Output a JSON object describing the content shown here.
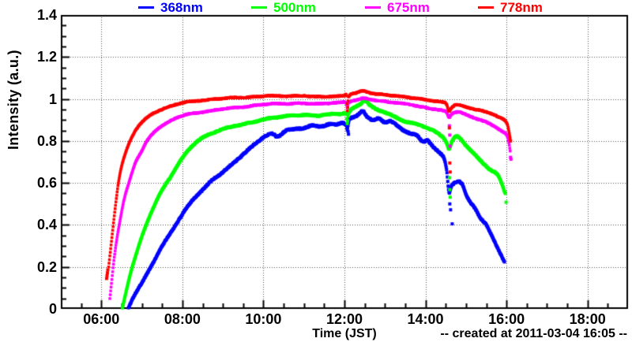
{
  "footer": {
    "text": "-- created at 2011-03-04 16:05 --"
  },
  "x_axis": {
    "title": "Time (JST)",
    "tick_labels": [
      "06:00",
      "08:00",
      "10:00",
      "12:00",
      "14:00",
      "16:00",
      "18:00"
    ],
    "tick_values": [
      6,
      8,
      10,
      12,
      14,
      16,
      18
    ]
  },
  "y_axis": {
    "title": "Intensity (a.u.)",
    "tick_labels": [
      "0",
      "0.2",
      "0.4",
      "0.6",
      "0.8",
      "1",
      "1.2",
      "1.4"
    ],
    "tick_values": [
      0,
      0.2,
      0.4,
      0.6,
      0.8,
      1.0,
      1.2,
      1.4
    ]
  },
  "chart_data": {
    "type": "scatter",
    "title": "",
    "xlabel": "Time (JST)",
    "ylabel": "Intensity (a.u.)",
    "xlim": [
      5,
      19
    ],
    "ylim": [
      0,
      1.4
    ],
    "grid": true,
    "grid_style": "dotted",
    "legend_position": "top",
    "x_unit": "decimal hours (JST)",
    "frame_color": "#000000",
    "grid_color": "#555555",
    "series": [
      {
        "name": "368nm",
        "color": "#0000ff",
        "points": [
          [
            6.67,
            0.005
          ],
          [
            6.8,
            0.06
          ],
          [
            7.0,
            0.125
          ],
          [
            7.25,
            0.21
          ],
          [
            7.5,
            0.3
          ],
          [
            7.75,
            0.375
          ],
          [
            8.0,
            0.45
          ],
          [
            8.25,
            0.515
          ],
          [
            8.5,
            0.565
          ],
          [
            8.75,
            0.615
          ],
          [
            9.0,
            0.652
          ],
          [
            9.3,
            0.7
          ],
          [
            9.6,
            0.755
          ],
          [
            9.8,
            0.79
          ],
          [
            10.0,
            0.822
          ],
          [
            10.2,
            0.836
          ],
          [
            10.35,
            0.82
          ],
          [
            10.55,
            0.848
          ],
          [
            10.8,
            0.855
          ],
          [
            11.0,
            0.862
          ],
          [
            11.2,
            0.872
          ],
          [
            11.4,
            0.864
          ],
          [
            11.6,
            0.876
          ],
          [
            11.8,
            0.876
          ],
          [
            11.95,
            0.888
          ],
          [
            12.05,
            0.878
          ],
          [
            12.07,
            0.858
          ],
          [
            12.12,
            0.905
          ],
          [
            12.25,
            0.916
          ],
          [
            12.38,
            0.932
          ],
          [
            12.45,
            0.945
          ],
          [
            12.55,
            0.92
          ],
          [
            12.7,
            0.9
          ],
          [
            12.85,
            0.906
          ],
          [
            13.0,
            0.89
          ],
          [
            13.12,
            0.9
          ],
          [
            13.3,
            0.874
          ],
          [
            13.45,
            0.85
          ],
          [
            13.6,
            0.836
          ],
          [
            13.8,
            0.82
          ],
          [
            13.93,
            0.792
          ],
          [
            14.05,
            0.8
          ],
          [
            14.2,
            0.77
          ],
          [
            14.35,
            0.742
          ],
          [
            14.45,
            0.72
          ],
          [
            14.52,
            0.664
          ],
          [
            14.58,
            0.558
          ],
          [
            14.64,
            0.585
          ],
          [
            14.72,
            0.6
          ],
          [
            14.82,
            0.605
          ],
          [
            14.92,
            0.588
          ],
          [
            15.0,
            0.545
          ],
          [
            15.1,
            0.512
          ],
          [
            15.22,
            0.482
          ],
          [
            15.35,
            0.436
          ],
          [
            15.5,
            0.402
          ],
          [
            15.65,
            0.345
          ],
          [
            15.8,
            0.282
          ],
          [
            15.88,
            0.25
          ],
          [
            15.95,
            0.222
          ]
        ],
        "outliers": [
          [
            14.6,
            0.5
          ],
          [
            14.62,
            0.472
          ],
          [
            14.66,
            0.405
          ],
          [
            12.09,
            0.845
          ],
          [
            12.1,
            0.832
          ]
        ]
      },
      {
        "name": "500nm",
        "color": "#00ff00",
        "points": [
          [
            6.52,
            0.005
          ],
          [
            6.62,
            0.09
          ],
          [
            6.72,
            0.17
          ],
          [
            6.85,
            0.255
          ],
          [
            7.0,
            0.345
          ],
          [
            7.2,
            0.445
          ],
          [
            7.45,
            0.55
          ],
          [
            7.7,
            0.628
          ],
          [
            8.0,
            0.718
          ],
          [
            8.3,
            0.785
          ],
          [
            8.6,
            0.825
          ],
          [
            9.0,
            0.856
          ],
          [
            9.5,
            0.88
          ],
          [
            10.0,
            0.905
          ],
          [
            10.3,
            0.912
          ],
          [
            10.6,
            0.918
          ],
          [
            11.0,
            0.924
          ],
          [
            11.3,
            0.918
          ],
          [
            11.6,
            0.924
          ],
          [
            11.9,
            0.93
          ],
          [
            12.05,
            0.928
          ],
          [
            12.07,
            0.885
          ],
          [
            12.1,
            0.932
          ],
          [
            12.25,
            0.962
          ],
          [
            12.4,
            0.978
          ],
          [
            12.5,
            0.995
          ],
          [
            12.62,
            0.972
          ],
          [
            12.78,
            0.952
          ],
          [
            12.92,
            0.944
          ],
          [
            13.05,
            0.934
          ],
          [
            13.2,
            0.92
          ],
          [
            13.4,
            0.9
          ],
          [
            13.6,
            0.885
          ],
          [
            13.8,
            0.875
          ],
          [
            14.0,
            0.864
          ],
          [
            14.2,
            0.848
          ],
          [
            14.35,
            0.83
          ],
          [
            14.45,
            0.814
          ],
          [
            14.52,
            0.792
          ],
          [
            14.58,
            0.762
          ],
          [
            14.66,
            0.8
          ],
          [
            14.76,
            0.82
          ],
          [
            14.86,
            0.81
          ],
          [
            15.0,
            0.78
          ],
          [
            15.2,
            0.74
          ],
          [
            15.4,
            0.7
          ],
          [
            15.6,
            0.665
          ],
          [
            15.75,
            0.645
          ],
          [
            15.85,
            0.613
          ],
          [
            15.92,
            0.575
          ],
          [
            15.97,
            0.548
          ]
        ],
        "outliers": [
          [
            14.59,
            0.625
          ],
          [
            14.6,
            0.568
          ],
          [
            14.61,
            0.532
          ],
          [
            15.99,
            0.508
          ]
        ]
      },
      {
        "name": "675nm",
        "color": "#ff00ff",
        "points": [
          [
            6.21,
            0.05
          ],
          [
            6.26,
            0.14
          ],
          [
            6.31,
            0.23
          ],
          [
            6.38,
            0.33
          ],
          [
            6.46,
            0.42
          ],
          [
            6.56,
            0.52
          ],
          [
            6.68,
            0.6
          ],
          [
            6.84,
            0.695
          ],
          [
            7.0,
            0.752
          ],
          [
            7.13,
            0.8
          ],
          [
            7.35,
            0.85
          ],
          [
            7.6,
            0.884
          ],
          [
            8.0,
            0.92
          ],
          [
            8.5,
            0.94
          ],
          [
            9.0,
            0.952
          ],
          [
            9.5,
            0.962
          ],
          [
            10.0,
            0.972
          ],
          [
            10.5,
            0.977
          ],
          [
            11.0,
            0.981
          ],
          [
            11.3,
            0.977
          ],
          [
            11.6,
            0.981
          ],
          [
            11.9,
            0.984
          ],
          [
            12.05,
            0.982
          ],
          [
            12.07,
            0.958
          ],
          [
            12.1,
            0.982
          ],
          [
            12.3,
            0.993
          ],
          [
            12.5,
            1.0
          ],
          [
            12.7,
            0.994
          ],
          [
            13.0,
            0.988
          ],
          [
            13.3,
            0.981
          ],
          [
            13.6,
            0.974
          ],
          [
            13.9,
            0.964
          ],
          [
            14.2,
            0.954
          ],
          [
            14.4,
            0.946
          ],
          [
            14.52,
            0.936
          ],
          [
            14.58,
            0.912
          ],
          [
            14.65,
            0.928
          ],
          [
            14.8,
            0.938
          ],
          [
            15.0,
            0.924
          ],
          [
            15.3,
            0.903
          ],
          [
            15.5,
            0.888
          ],
          [
            15.7,
            0.868
          ],
          [
            15.85,
            0.85
          ],
          [
            15.95,
            0.838
          ],
          [
            16.02,
            0.822
          ],
          [
            16.06,
            0.792
          ],
          [
            16.09,
            0.752
          ]
        ],
        "outliers": [
          [
            14.59,
            0.872
          ],
          [
            14.6,
            0.828
          ],
          [
            14.61,
            0.775
          ],
          [
            16.1,
            0.722
          ],
          [
            16.11,
            0.713
          ]
        ]
      },
      {
        "name": "778nm",
        "color": "#ff0000",
        "points": [
          [
            6.18,
            0.2
          ],
          [
            6.22,
            0.27
          ],
          [
            6.26,
            0.34
          ],
          [
            6.3,
            0.41
          ],
          [
            6.36,
            0.51
          ],
          [
            6.42,
            0.6
          ],
          [
            6.5,
            0.68
          ],
          [
            6.6,
            0.745
          ],
          [
            6.71,
            0.8
          ],
          [
            6.85,
            0.852
          ],
          [
            7.0,
            0.888
          ],
          [
            7.23,
            0.925
          ],
          [
            7.5,
            0.95
          ],
          [
            7.75,
            0.966
          ],
          [
            8.0,
            0.98
          ],
          [
            8.5,
            0.995
          ],
          [
            9.0,
            1.003
          ],
          [
            9.5,
            1.008
          ],
          [
            10.0,
            1.012
          ],
          [
            10.5,
            1.012
          ],
          [
            11.0,
            1.015
          ],
          [
            11.3,
            1.01
          ],
          [
            11.6,
            1.013
          ],
          [
            11.9,
            1.016
          ],
          [
            12.0,
            1.018
          ],
          [
            12.05,
            1.015
          ],
          [
            12.07,
            0.945
          ],
          [
            12.1,
            1.01
          ],
          [
            12.3,
            1.028
          ],
          [
            12.45,
            1.038
          ],
          [
            12.6,
            1.03
          ],
          [
            12.8,
            1.022
          ],
          [
            13.0,
            1.02
          ],
          [
            13.3,
            1.012
          ],
          [
            13.6,
            1.006
          ],
          [
            13.9,
            1.0
          ],
          [
            14.2,
            0.993
          ],
          [
            14.4,
            0.986
          ],
          [
            14.52,
            0.975
          ],
          [
            14.58,
            0.942
          ],
          [
            14.64,
            0.958
          ],
          [
            14.75,
            0.972
          ],
          [
            14.9,
            0.968
          ],
          [
            15.0,
            0.962
          ],
          [
            15.3,
            0.948
          ],
          [
            15.5,
            0.936
          ],
          [
            15.7,
            0.922
          ],
          [
            15.85,
            0.908
          ],
          [
            15.95,
            0.897
          ],
          [
            16.02,
            0.878
          ],
          [
            16.06,
            0.845
          ],
          [
            16.09,
            0.812
          ]
        ],
        "outliers": [
          [
            6.13,
            0.145
          ],
          [
            6.14,
            0.158
          ],
          [
            6.15,
            0.172
          ],
          [
            6.16,
            0.186
          ],
          [
            14.59,
            0.862
          ],
          [
            14.6,
            0.695
          ],
          [
            14.61,
            0.652
          ],
          [
            16.1,
            0.8
          ]
        ]
      }
    ]
  }
}
